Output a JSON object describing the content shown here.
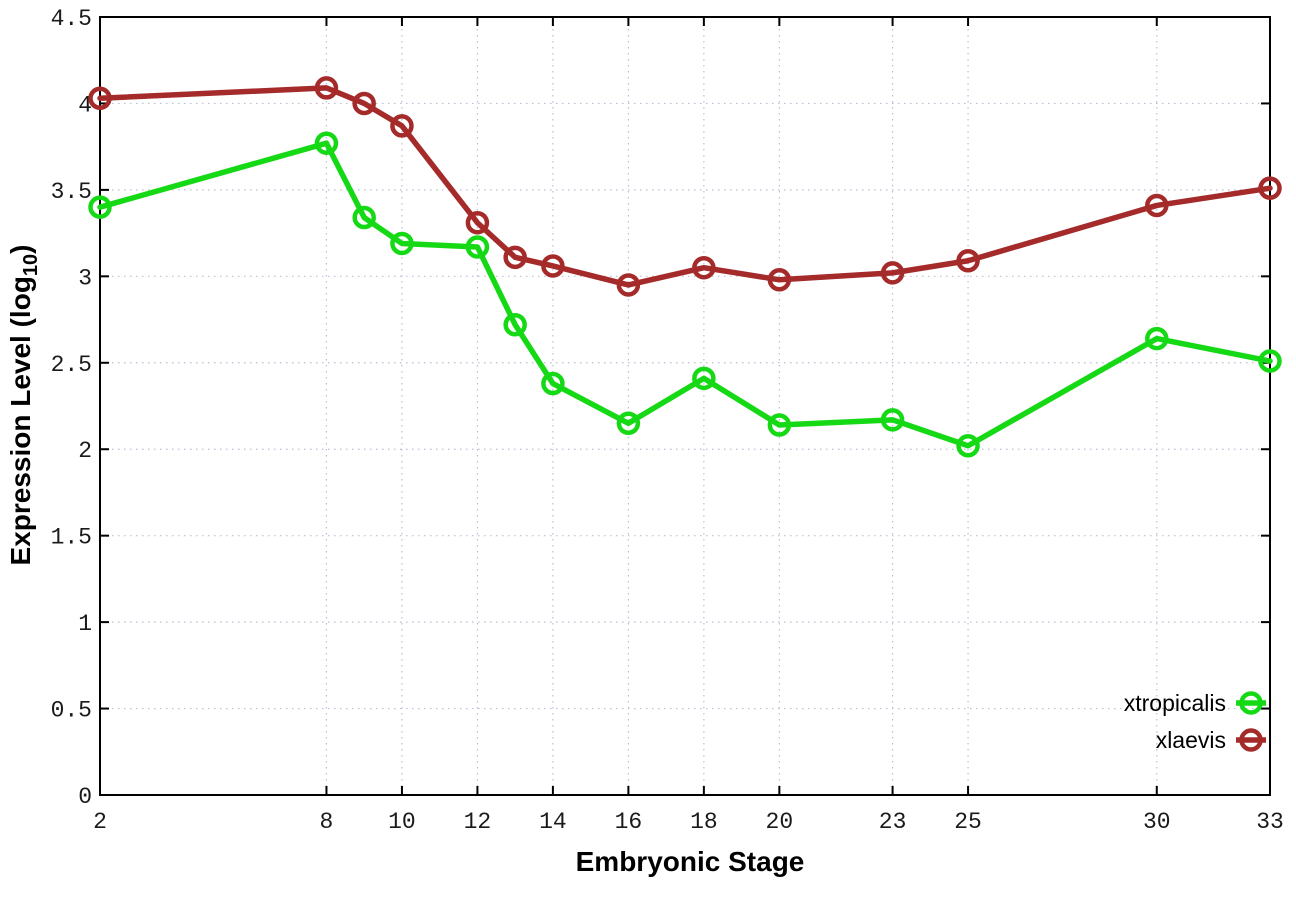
{
  "chart_data": {
    "type": "line",
    "title": "",
    "xlabel": "Embryonic Stage",
    "ylabel": "Expression Level (log10)",
    "x": [
      2,
      8,
      9,
      10,
      12,
      13,
      14,
      16,
      18,
      20,
      23,
      25,
      30,
      33
    ],
    "x_tick_labels": [
      "2",
      "8",
      "10",
      "12",
      "14",
      "16",
      "18",
      "20",
      "23",
      "25",
      "30",
      "33"
    ],
    "x_tick_values": [
      2,
      8,
      10,
      12,
      14,
      16,
      18,
      20,
      23,
      25,
      30,
      33
    ],
    "y_tick_labels": [
      "0",
      "0.5",
      "1",
      "1.5",
      "2",
      "2.5",
      "3",
      "3.5",
      "4",
      "4.5"
    ],
    "y_tick_values": [
      0,
      0.5,
      1,
      1.5,
      2,
      2.5,
      3,
      3.5,
      4,
      4.5
    ],
    "xlim": [
      2,
      33
    ],
    "ylim": [
      0,
      4.5
    ],
    "grid": true,
    "legend_position": "bottom-right",
    "series": [
      {
        "name": "xtropicalis",
        "color": "#16d916",
        "values": [
          3.4,
          3.77,
          3.34,
          3.19,
          3.17,
          2.72,
          2.38,
          2.15,
          2.41,
          2.14,
          2.17,
          2.02,
          2.64,
          2.51
        ]
      },
      {
        "name": "xlaevis",
        "color": "#a52a2a",
        "values": [
          4.03,
          4.09,
          4.0,
          3.87,
          3.31,
          3.11,
          3.06,
          2.95,
          3.05,
          2.98,
          3.02,
          3.09,
          3.41,
          3.51
        ]
      }
    ]
  },
  "axes": {
    "xlabel": "Embryonic Stage",
    "ylabel_prefix": "Expression Level (log",
    "ylabel_sub": "10",
    "ylabel_suffix": ")"
  },
  "style_colors": {
    "grid": "#b9c0d4",
    "axis": "#000000",
    "tick_text": "#1a1a1a"
  }
}
